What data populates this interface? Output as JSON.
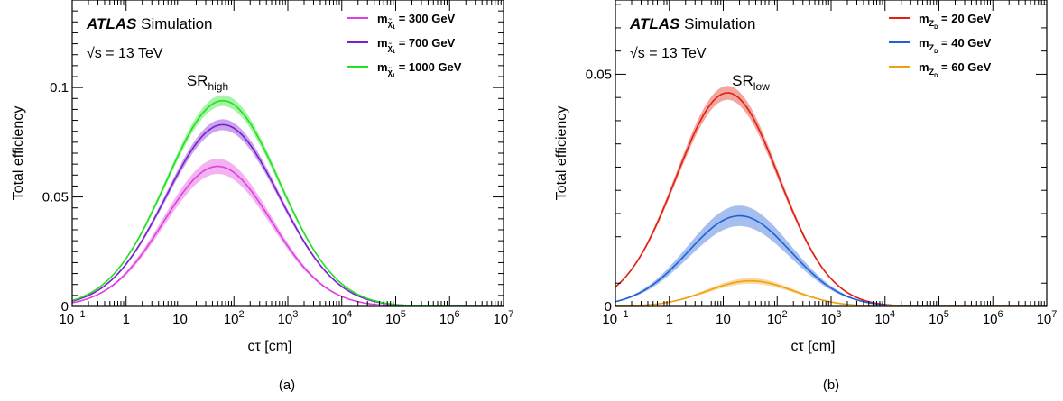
{
  "chart_data": [
    {
      "type": "line",
      "panel_label": "(a)",
      "experiment": "ATLAS",
      "experiment_suffix": "Simulation",
      "energy_label": "√s = 13 TeV",
      "region_label": {
        "main": "SR",
        "sub": "high"
      },
      "xlabel": "cτ [cm]",
      "ylabel": "Total efficiency",
      "xscale": "log",
      "xlim": [
        0.1,
        10000000
      ],
      "ylim": [
        0,
        0.14
      ],
      "xticks": [
        {
          "v": 0.1,
          "base": "10",
          "exp": "−1"
        },
        {
          "v": 1,
          "base": "1",
          "exp": ""
        },
        {
          "v": 10,
          "base": "10",
          "exp": ""
        },
        {
          "v": 100,
          "base": "10",
          "exp": "2"
        },
        {
          "v": 1000,
          "base": "10",
          "exp": "3"
        },
        {
          "v": 10000,
          "base": "10",
          "exp": "4"
        },
        {
          "v": 100000,
          "base": "10",
          "exp": "5"
        },
        {
          "v": 1000000,
          "base": "10",
          "exp": "6"
        },
        {
          "v": 10000000,
          "base": "10",
          "exp": "7"
        }
      ],
      "yticks": [
        {
          "v": 0,
          "label": "0"
        },
        {
          "v": 0.05,
          "label": "0.05"
        },
        {
          "v": 0.1,
          "label": "0.1"
        }
      ],
      "grid": false,
      "legend_position": "top-right",
      "series": [
        {
          "name": "m = 300 GeV",
          "particle": "χ̃",
          "sub_sup": "0",
          "sub_sub": "1",
          "legend_label": "= 300 GeV",
          "color": "#e040e0",
          "peak_ctau": 50,
          "peak_eff": 0.064,
          "width": 1.0,
          "band": 0.0035
        },
        {
          "name": "m = 700 GeV",
          "particle": "χ̃",
          "sub_sup": "0",
          "sub_sub": "1",
          "legend_label": "= 700 GeV",
          "color": "#7a1fd1",
          "peak_ctau": 62,
          "peak_eff": 0.083,
          "width": 1.05,
          "band": 0.0025
        },
        {
          "name": "m = 1000 GeV",
          "particle": "χ̃",
          "sub_sup": "0",
          "sub_sub": "1",
          "legend_label": "= 1000 GeV",
          "color": "#22e022",
          "peak_ctau": 62,
          "peak_eff": 0.094,
          "width": 1.05,
          "band": 0.0025
        }
      ]
    },
    {
      "type": "line",
      "panel_label": "(b)",
      "experiment": "ATLAS",
      "experiment_suffix": "Simulation",
      "energy_label": "√s = 13 TeV",
      "region_label": {
        "main": "SR",
        "sub": "low"
      },
      "xlabel": "cτ [cm]",
      "ylabel": "Total efficiency",
      "xscale": "log",
      "xlim": [
        0.1,
        10000000
      ],
      "ylim": [
        0,
        0.066
      ],
      "xticks": [
        {
          "v": 0.1,
          "base": "10",
          "exp": "−1"
        },
        {
          "v": 1,
          "base": "1",
          "exp": ""
        },
        {
          "v": 10,
          "base": "10",
          "exp": ""
        },
        {
          "v": 100,
          "base": "10",
          "exp": "2"
        },
        {
          "v": 1000,
          "base": "10",
          "exp": "3"
        },
        {
          "v": 10000,
          "base": "10",
          "exp": "4"
        },
        {
          "v": 100000,
          "base": "10",
          "exp": "5"
        },
        {
          "v": 1000000,
          "base": "10",
          "exp": "6"
        },
        {
          "v": 10000000,
          "base": "10",
          "exp": "7"
        }
      ],
      "yticks": [
        {
          "v": 0,
          "label": "0"
        },
        {
          "v": 0.05,
          "label": "0.05"
        }
      ],
      "grid": false,
      "legend_position": "top-right",
      "series": [
        {
          "name": "m = 20 GeV",
          "particle": "Z",
          "sub_sub": "D",
          "legend_label": "= 20 GeV",
          "color": "#e02010",
          "peak_ctau": 12,
          "peak_eff": 0.046,
          "width": 0.95,
          "band": 0.0015
        },
        {
          "name": "m = 40 GeV",
          "particle": "Z",
          "sub_sub": "D",
          "legend_label": "= 40 GeV",
          "color": "#1f60d8",
          "peak_ctau": 20,
          "peak_eff": 0.0195,
          "width": 0.95,
          "band": 0.0022
        },
        {
          "name": "m = 60 GeV",
          "particle": "Z",
          "sub_sub": "D",
          "legend_label": "= 60 GeV",
          "color": "#f0a010",
          "peak_ctau": 32,
          "peak_eff": 0.0055,
          "width": 0.8,
          "band": 0.0006
        }
      ]
    }
  ]
}
